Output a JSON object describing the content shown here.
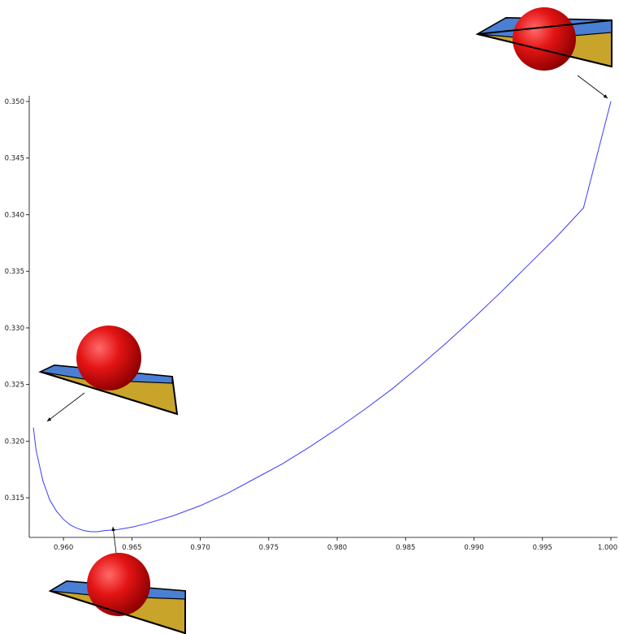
{
  "chart_data": {
    "type": "line",
    "title": "",
    "xlabel": "",
    "ylabel": "",
    "xlim": [
      0.9575,
      1.0
    ],
    "ylim": [
      0.3115,
      0.3505
    ],
    "xticks": [
      "0.960",
      "0.965",
      "0.970",
      "0.975",
      "0.980",
      "0.985",
      "0.990",
      "0.995",
      "1.000"
    ],
    "yticks": [
      "0.315",
      "0.320",
      "0.325",
      "0.330",
      "0.335",
      "0.340",
      "0.345",
      "0.350"
    ],
    "grid": false,
    "line_color": "#3b3bff",
    "series": [
      {
        "x": [
          0.9578,
          0.958,
          0.9585,
          0.959,
          0.9595,
          0.96,
          0.9605,
          0.961,
          0.9615,
          0.962,
          0.9625,
          0.963,
          0.964,
          0.965,
          0.966,
          0.968,
          0.97,
          0.972,
          0.974,
          0.976,
          0.978,
          0.98,
          0.982,
          0.984,
          0.986,
          0.988,
          0.99,
          0.992,
          0.994,
          0.996,
          0.998,
          1.0
        ],
        "y": [
          0.3212,
          0.3192,
          0.3165,
          0.3148,
          0.3138,
          0.3131,
          0.3126,
          0.3123,
          0.3121,
          0.312,
          0.312,
          0.3121,
          0.3122,
          0.3124,
          0.3127,
          0.3134,
          0.3143,
          0.3154,
          0.3167,
          0.318,
          0.3195,
          0.3211,
          0.3228,
          0.3246,
          0.3266,
          0.3287,
          0.3309,
          0.3332,
          0.3356,
          0.338,
          0.3406,
          0.35
        ]
      }
    ],
    "annotations": [
      {
        "kind": "tetrahedron-with-sphere",
        "arrow_to": [
          0.9578,
          0.3212
        ]
      },
      {
        "kind": "tetrahedron-with-sphere",
        "arrow_to": [
          0.9628,
          0.3121
        ]
      },
      {
        "kind": "tetrahedron-with-sphere",
        "arrow_to": [
          1.0,
          0.35
        ]
      }
    ],
    "colors": {
      "sphere": "#e00000",
      "face_blue": "#4a7fd4",
      "face_gold": "#c9a42a",
      "edge": "#000000"
    }
  }
}
